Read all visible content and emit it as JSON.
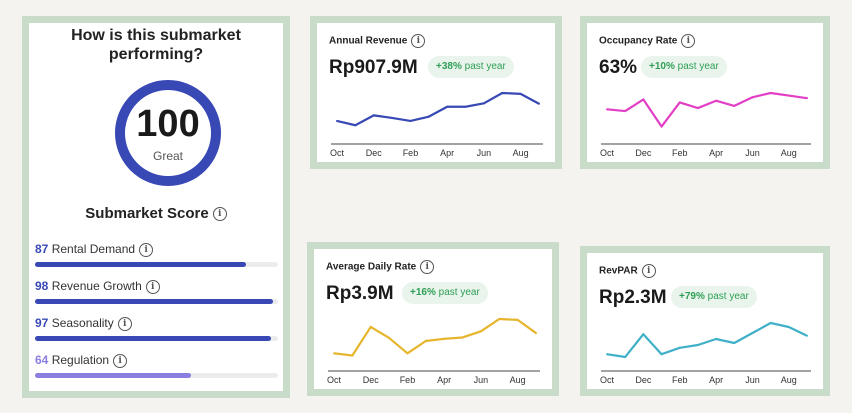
{
  "score_card": {
    "question_line1": "How is this submarket",
    "question_line2": "performing?",
    "score": "100",
    "rating": "Great",
    "heading": "Submarket Score",
    "metrics": [
      {
        "value": "87",
        "label": "Rental Demand",
        "fraction": 0.87,
        "color": "#3848b5"
      },
      {
        "value": "98",
        "label": "Revenue Growth",
        "fraction": 0.98,
        "color": "#3848b5"
      },
      {
        "value": "97",
        "label": "Seasonality",
        "fraction": 0.97,
        "color": "#3848b5"
      },
      {
        "value": "64",
        "label": "Regulation",
        "fraction": 0.64,
        "color": "#8a7fe0"
      }
    ]
  },
  "charts": {
    "annual_revenue": {
      "title": "Annual Revenue",
      "value": "Rp907.9M",
      "change": "+38%",
      "change_suffix": "past year"
    },
    "occupancy_rate": {
      "title": "Occupancy Rate",
      "value": "63%",
      "change": "+10%",
      "change_suffix": "past year"
    },
    "average_daily_rate": {
      "title": "Average Daily Rate",
      "value": "Rp3.9M",
      "change": "+16%",
      "change_suffix": "past year"
    },
    "revpar": {
      "title": "RevPAR",
      "value": "Rp2.3M",
      "change": "+79%",
      "change_suffix": "past year"
    }
  },
  "chart_data": [
    {
      "type": "line",
      "title": "Annual Revenue",
      "color": "#3848b5",
      "x": [
        "Oct",
        "Nov",
        "Dec",
        "Jan",
        "Feb",
        "Mar",
        "Apr",
        "May",
        "Jun",
        "Jul",
        "Aug",
        "Sep"
      ],
      "tick_labels": [
        "Oct",
        "Dec",
        "Feb",
        "Apr",
        "Jun",
        "Aug"
      ],
      "values": [
        0.35,
        0.25,
        0.48,
        0.42,
        0.35,
        0.45,
        0.68,
        0.68,
        0.76,
        1.0,
        0.98,
        0.75
      ]
    },
    {
      "type": "line",
      "title": "Occupancy Rate",
      "color": "#e23fc6",
      "x": [
        "Oct",
        "Nov",
        "Dec",
        "Jan",
        "Feb",
        "Mar",
        "Apr",
        "May",
        "Jun",
        "Jul",
        "Aug",
        "Sep"
      ],
      "tick_labels": [
        "Oct",
        "Dec",
        "Feb",
        "Apr",
        "Jun",
        "Aug"
      ],
      "values": [
        0.62,
        0.58,
        0.85,
        0.22,
        0.78,
        0.65,
        0.82,
        0.7,
        0.9,
        1.0,
        0.94,
        0.88
      ]
    },
    {
      "type": "line",
      "title": "Average Daily Rate",
      "color": "#e6b52c",
      "x": [
        "Oct",
        "Nov",
        "Dec",
        "Jan",
        "Feb",
        "Mar",
        "Apr",
        "May",
        "Jun",
        "Jul",
        "Aug",
        "Sep"
      ],
      "tick_labels": [
        "Oct",
        "Dec",
        "Feb",
        "Apr",
        "Jun",
        "Aug"
      ],
      "values": [
        0.22,
        0.17,
        0.82,
        0.57,
        0.22,
        0.5,
        0.55,
        0.58,
        0.72,
        1.0,
        0.98,
        0.68
      ]
    },
    {
      "type": "line",
      "title": "RevPAR",
      "color": "#3fb0c8",
      "x": [
        "Oct",
        "Nov",
        "Dec",
        "Jan",
        "Feb",
        "Mar",
        "Apr",
        "May",
        "Jun",
        "Jul",
        "Aug",
        "Sep"
      ],
      "tick_labels": [
        "Oct",
        "Dec",
        "Feb",
        "Apr",
        "Jun",
        "Aug"
      ],
      "values": [
        0.22,
        0.15,
        0.72,
        0.22,
        0.38,
        0.45,
        0.6,
        0.5,
        0.75,
        1.0,
        0.9,
        0.68
      ]
    }
  ]
}
